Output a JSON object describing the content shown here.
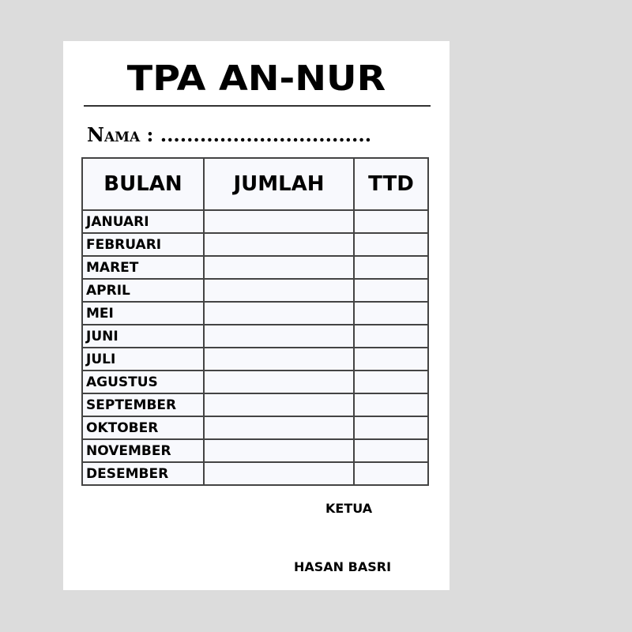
{
  "title": "TPA AN-NUR",
  "nama_label": "Nama :",
  "nama_dots": "................................",
  "table": {
    "headers": [
      "BULAN",
      "JUMLAH",
      "TTD"
    ],
    "months": [
      "JANUARI",
      "FEBRUARI",
      "MARET",
      "APRIL",
      "MEI",
      "JUNI",
      "JULI",
      "AGUSTUS",
      "SEPTEMBER",
      "OKTOBER",
      "NOVEMBER",
      "DESEMBER"
    ]
  },
  "signature": {
    "role": "KETUA",
    "name": "HASAN BASRI"
  }
}
